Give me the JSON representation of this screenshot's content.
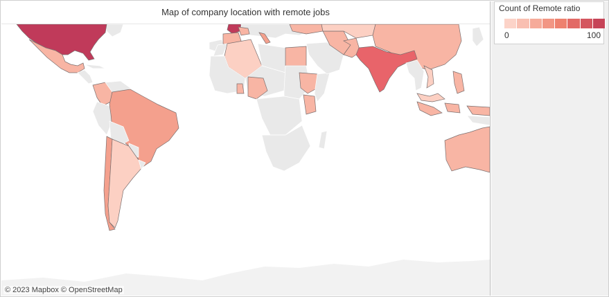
{
  "map": {
    "title": "Map of company location with remote jobs",
    "attribution": "© 2023 Mapbox  © OpenStreetMap"
  },
  "legend": {
    "title": "Count of Remote ratio",
    "min_label": "0",
    "max_label": "100",
    "ramp_colors": [
      "#fcd3c8",
      "#f9bfb1",
      "#f6ab9a",
      "#f29684",
      "#ee816f",
      "#e26a66",
      "#d4565f",
      "#c64458"
    ]
  },
  "colors": {
    "no_data": "#e6e6e6",
    "very_low": "#fcd0c3",
    "low": "#f8b5a4",
    "medium_low": "#f4a08d",
    "high": "#e8646a",
    "very_high": "#c03a5a"
  },
  "countries": [
    {
      "name": "United States",
      "level": "very_high"
    },
    {
      "name": "United Kingdom",
      "level": "very_high"
    },
    {
      "name": "India",
      "level": "high"
    },
    {
      "name": "Brazil",
      "level": "medium_low"
    },
    {
      "name": "China",
      "level": "low"
    },
    {
      "name": "Australia",
      "level": "low"
    },
    {
      "name": "Mexico",
      "level": "low"
    },
    {
      "name": "Argentina",
      "level": "very_low"
    },
    {
      "name": "Chile",
      "level": "low"
    },
    {
      "name": "Colombia",
      "level": "low"
    },
    {
      "name": "Nigeria",
      "level": "low"
    },
    {
      "name": "Kenya",
      "level": "low"
    },
    {
      "name": "Egypt",
      "level": "low"
    },
    {
      "name": "Algeria",
      "level": "very_low"
    }
  ]
}
